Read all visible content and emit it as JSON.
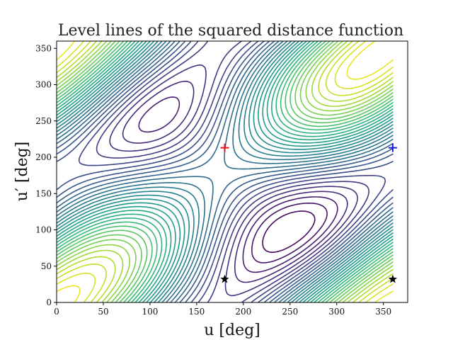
{
  "chart_data": {
    "type": "contour",
    "title": "Level lines of the squared distance function",
    "xlabel": "u [deg]",
    "ylabel": "u′ [deg]",
    "xlim": [
      0,
      376
    ],
    "ylim": [
      0,
      360
    ],
    "xticks": [
      0,
      50,
      100,
      150,
      200,
      250,
      300,
      350
    ],
    "yticks": [
      0,
      50,
      100,
      150,
      200,
      250,
      300,
      350
    ],
    "colormap": "viridis",
    "data_extent": {
      "x": [
        0,
        360
      ],
      "y": [
        0,
        360
      ]
    },
    "grid": false,
    "legend": "none",
    "markers": [
      {
        "symbol": "+",
        "color": "#e8141c",
        "x": 180,
        "y": 213
      },
      {
        "symbol": "+",
        "color": "#1a1adf",
        "x": 360,
        "y": 213
      },
      {
        "symbol": "star",
        "color": "#000000",
        "x": 180,
        "y": 32
      },
      {
        "symbol": "star",
        "color": "#000000",
        "x": 360,
        "y": 32
      }
    ]
  }
}
